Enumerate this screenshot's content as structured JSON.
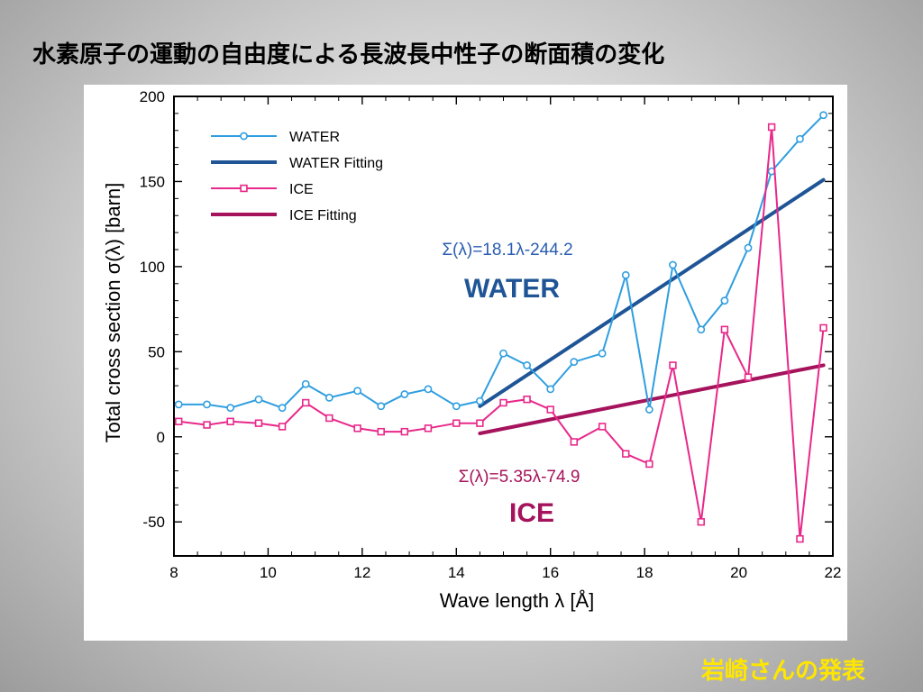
{
  "slide": {
    "title": "水素原子の運動の自由度による長波長中性子の断面積の変化",
    "credit": "岩崎さんの発表",
    "colors": {
      "credit": "#ffe600",
      "background": "#d0d0d0"
    }
  },
  "chart_data": {
    "type": "line",
    "xlabel": "Wave length λ [Å]",
    "ylabel": "Total cross section σ(λ) [barn]",
    "xlim": [
      8,
      22
    ],
    "ylim": [
      -70,
      200
    ],
    "xticks": [
      8,
      10,
      12,
      14,
      16,
      18,
      20,
      22
    ],
    "yticks": [
      -50,
      0,
      50,
      100,
      150,
      200
    ],
    "grid": false,
    "legend_position": "top-left",
    "series": [
      {
        "name": "WATER",
        "kind": "line-marker",
        "marker": "circle",
        "color": "#2f9ee0",
        "x": [
          8.1,
          8.7,
          9.2,
          9.8,
          10.3,
          10.8,
          11.3,
          11.9,
          12.4,
          12.9,
          13.4,
          14.0,
          14.5,
          15.0,
          15.5,
          16.0,
          16.5,
          17.1,
          17.6,
          18.1,
          18.6,
          19.2,
          19.7,
          20.2,
          20.7,
          21.3,
          21.8
        ],
        "y": [
          19,
          19,
          17,
          22,
          17,
          31,
          23,
          27,
          18,
          25,
          28,
          18,
          21,
          49,
          42,
          28,
          44,
          49,
          95,
          16,
          101,
          63,
          80,
          111,
          156,
          175,
          189
        ]
      },
      {
        "name": "WATER Fitting",
        "kind": "line",
        "color": "#1f5596",
        "x": [
          14.5,
          21.8
        ],
        "y": [
          18,
          151
        ]
      },
      {
        "name": "ICE",
        "kind": "line-marker",
        "marker": "square",
        "color": "#e8288a",
        "x": [
          8.1,
          8.7,
          9.2,
          9.8,
          10.3,
          10.8,
          11.3,
          11.9,
          12.4,
          12.9,
          13.4,
          14.0,
          14.5,
          15.0,
          15.5,
          16.0,
          16.5,
          17.1,
          17.6,
          18.1,
          18.6,
          19.2,
          19.7,
          20.2,
          20.7,
          21.3,
          21.8
        ],
        "y": [
          9,
          7,
          9,
          8,
          6,
          20,
          11,
          5,
          3,
          3,
          5,
          8,
          8,
          20,
          22,
          16,
          -3,
          6,
          -10,
          -16,
          42,
          -50,
          63,
          35,
          182,
          -60,
          64
        ]
      },
      {
        "name": "ICE Fitting",
        "kind": "line",
        "color": "#a5135c",
        "x": [
          14.5,
          21.8
        ],
        "y": [
          2,
          42
        ]
      }
    ],
    "annotations": [
      {
        "id": "water-equation",
        "text": "Σ(λ)=18.1λ-244.2",
        "color": "#2a5db0"
      },
      {
        "id": "water-label",
        "text": "WATER",
        "color": "#1f5596"
      },
      {
        "id": "ice-equation",
        "text": "Σ(λ)=5.35λ-74.9",
        "color": "#a5135c"
      },
      {
        "id": "ice-label",
        "text": "ICE",
        "color": "#a5135c"
      }
    ]
  }
}
